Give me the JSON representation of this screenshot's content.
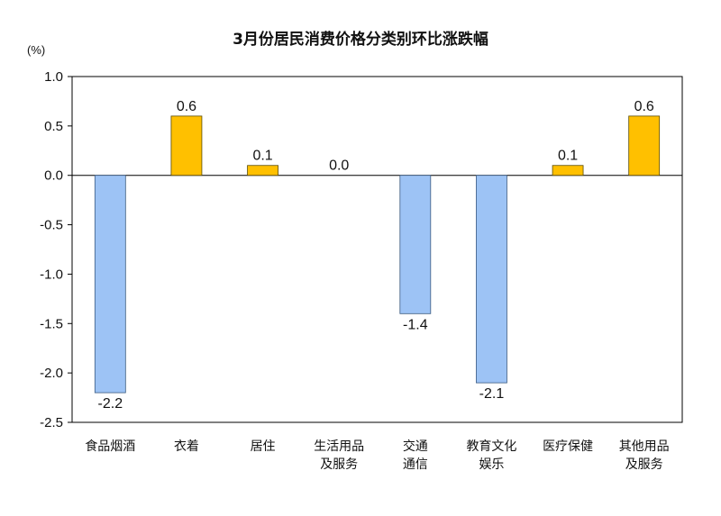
{
  "chart_data": {
    "type": "bar",
    "title": "3月份居民消费价格分类别环比涨跌幅",
    "unit_label": "(%)",
    "categories": [
      [
        "食品烟酒"
      ],
      [
        "衣着"
      ],
      [
        "居住"
      ],
      [
        "生活用品",
        "及服务"
      ],
      [
        "交通",
        "通信"
      ],
      [
        "教育文化",
        "娱乐"
      ],
      [
        "医疗保健"
      ],
      [
        "其他用品",
        "及服务"
      ]
    ],
    "values": [
      -2.2,
      0.6,
      0.1,
      0.0,
      -1.4,
      -2.1,
      0.1,
      0.6
    ],
    "data_labels": [
      "-2.2",
      "0.6",
      "0.1",
      "0.0",
      "-1.4",
      "-2.1",
      "0.1",
      "0.6"
    ],
    "ylim": [
      -2.5,
      1.0
    ],
    "yticks": [
      "1.0",
      "0.5",
      "0.0",
      "-0.5",
      "-1.0",
      "-1.5",
      "-2.0",
      "-2.5"
    ],
    "ytick_values": [
      1.0,
      0.5,
      0.0,
      -0.5,
      -1.0,
      -1.5,
      -2.0,
      -2.5
    ],
    "colors": {
      "positive": "#FFC000",
      "negative": "#9DC3F5",
      "positive_stroke": "#5a4a00",
      "negative_stroke": "#3a5a80"
    },
    "grid": false,
    "legend": "none"
  }
}
